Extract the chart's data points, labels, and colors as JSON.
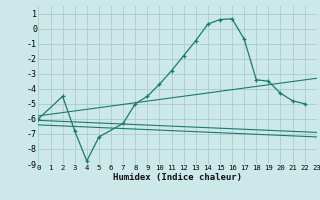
{
  "xlabel": "Humidex (Indice chaleur)",
  "bg_color": "#cce8e8",
  "grid_color": "#aacccc",
  "line_color": "#1a7a6e",
  "xlim": [
    0,
    23
  ],
  "ylim": [
    -9,
    1.5
  ],
  "xticks": [
    0,
    1,
    2,
    3,
    4,
    5,
    6,
    7,
    8,
    9,
    10,
    11,
    12,
    13,
    14,
    15,
    16,
    17,
    18,
    19,
    20,
    21,
    22,
    23
  ],
  "yticks": [
    1,
    0,
    -1,
    -2,
    -3,
    -4,
    -5,
    -6,
    -7,
    -8,
    -9
  ],
  "line1_x": [
    0,
    2,
    3,
    4,
    5,
    7,
    8,
    9,
    10,
    11,
    12,
    13,
    14,
    15,
    16,
    17,
    18,
    19,
    20,
    21,
    22
  ],
  "line1_y": [
    -6.0,
    -4.5,
    -6.8,
    -8.8,
    -7.2,
    -6.3,
    -5.0,
    -4.5,
    -3.7,
    -2.8,
    -1.8,
    -0.8,
    0.3,
    0.6,
    0.65,
    -0.7,
    -3.4,
    -3.5,
    -4.3,
    -4.8,
    -5.0
  ],
  "line2_x": [
    0,
    23
  ],
  "line2_y": [
    -5.8,
    -3.3
  ],
  "line3_x": [
    0,
    23
  ],
  "line3_y": [
    -6.1,
    -6.9
  ],
  "line4_x": [
    0,
    23
  ],
  "line4_y": [
    -6.4,
    -7.2
  ]
}
